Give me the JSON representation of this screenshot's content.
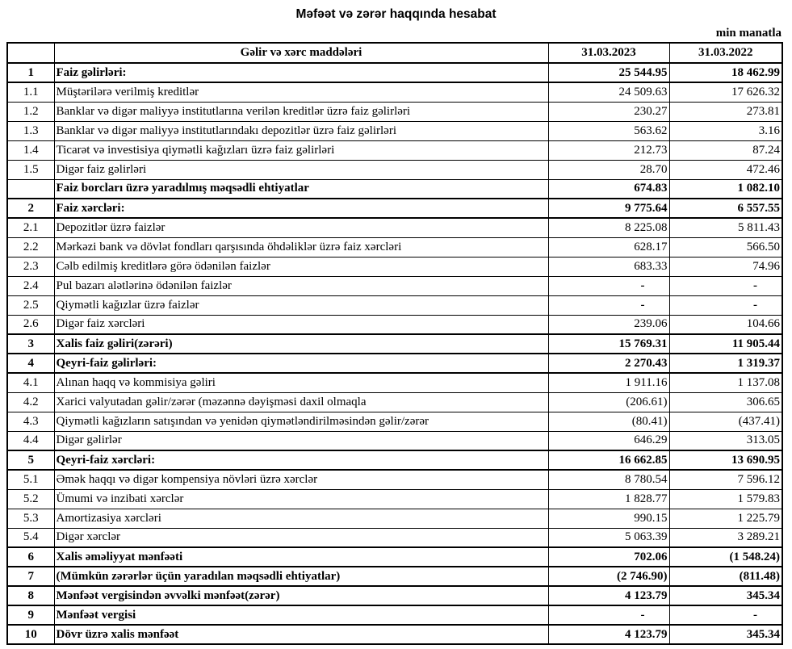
{
  "page": {
    "title": "Məfəət və zərər haqqında hesabat",
    "unit_note": "min manatla"
  },
  "table": {
    "columns": {
      "num": "",
      "item": "Gəlir və xərc maddələri",
      "y2023": "31.03.2023",
      "y2022": "31.03.2022"
    },
    "rows": [
      {
        "num": "1",
        "item": "Faiz gəlirləri:",
        "v2023": "25 544.95",
        "v2022": "18 462.99",
        "bold": true,
        "section": true
      },
      {
        "num": "1.1",
        "item": "Müştərilərə verilmiş kreditlər",
        "v2023": "24 509.63",
        "v2022": "17 626.32",
        "bold": false,
        "section": false
      },
      {
        "num": "1.2",
        "item": "Banklar və digər maliyyə institutlarına verilən kreditlər üzrə faiz gəlirləri",
        "v2023": "230.27",
        "v2022": "273.81",
        "bold": false,
        "section": false
      },
      {
        "num": "1.3",
        "item": "Banklar və digər maliyyə institutlarındakı depozitlər üzrə faiz gəlirləri",
        "v2023": "563.62",
        "v2022": "3.16",
        "bold": false,
        "section": false
      },
      {
        "num": "1.4",
        "item": "Ticarət və investisiya qiymətli kağızları üzrə faiz gəlirləri",
        "v2023": "212.73",
        "v2022": "87.24",
        "bold": false,
        "section": false
      },
      {
        "num": "1.5",
        "item": "Digər faiz gəlirləri",
        "v2023": "28.70",
        "v2022": "472.46",
        "bold": false,
        "section": false
      },
      {
        "num": "",
        "item": "Faiz borcları üzrə yaradılmış məqsədli ehtiyatlar",
        "v2023": "674.83",
        "v2022": "1 082.10",
        "bold": true,
        "section": false
      },
      {
        "num": "2",
        "item": "Faiz xərcləri:",
        "v2023": "9 775.64",
        "v2022": "6 557.55",
        "bold": true,
        "section": true
      },
      {
        "num": "2.1",
        "item": "Depozitlər üzrə faizlər",
        "v2023": "8 225.08",
        "v2022": "5 811.43",
        "bold": false,
        "section": false
      },
      {
        "num": "2.2",
        "item": "Mərkəzi bank və dövlət fondları qarşısında öhdəliklər üzrə faiz xərcləri",
        "v2023": "628.17",
        "v2022": "566.50",
        "bold": false,
        "section": false
      },
      {
        "num": "2.3",
        "item": "Cəlb edilmiş kreditlərə görə ödənilən faizlər",
        "v2023": "683.33",
        "v2022": "74.96",
        "bold": false,
        "section": false
      },
      {
        "num": "2.4",
        "item": "Pul bazarı alətlərinə ödənilən faizlər",
        "v2023": "-",
        "v2022": "-",
        "bold": false,
        "section": false
      },
      {
        "num": "2.5",
        "item": "Qiymətli kağızlar üzrə faizlər",
        "v2023": "-",
        "v2022": "-",
        "bold": false,
        "section": false
      },
      {
        "num": "2.6",
        "item": "Digər faiz xərcləri",
        "v2023": "239.06",
        "v2022": "104.66",
        "bold": false,
        "section": false
      },
      {
        "num": "3",
        "item": "Xalis faiz gəliri(zərəri)",
        "v2023": "15 769.31",
        "v2022": "11 905.44",
        "bold": true,
        "section": true
      },
      {
        "num": "4",
        "item": "Qeyri-faiz gəlirləri:",
        "v2023": "2 270.43",
        "v2022": "1 319.37",
        "bold": true,
        "section": true
      },
      {
        "num": "4.1",
        "item": "Alınan haqq və kommisiya gəliri",
        "v2023": "1 911.16",
        "v2022": "1 137.08",
        "bold": false,
        "section": false
      },
      {
        "num": "4.2",
        "item": "Xarici valyutadan gəlir/zərər (məzənnə dəyişməsi daxil olmaqla",
        "v2023": "(206.61)",
        "v2022": "306.65",
        "bold": false,
        "section": false
      },
      {
        "num": "4.3",
        "item": "Qiymətli kağızların satışından və yenidən qiymətləndirilməsindən gəlir/zərər",
        "v2023": "(80.41)",
        "v2022": "(437.41)",
        "bold": false,
        "section": false
      },
      {
        "num": "4.4",
        "item": "Digər gəlirlər",
        "v2023": "646.29",
        "v2022": "313.05",
        "bold": false,
        "section": false
      },
      {
        "num": "5",
        "item": "Qeyri-faiz xərcləri:",
        "v2023": "16 662.85",
        "v2022": "13 690.95",
        "bold": true,
        "section": true
      },
      {
        "num": "5.1",
        "item": "Əmək haqqı və digər kompensiya növləri üzrə xərclər",
        "v2023": "8 780.54",
        "v2022": "7 596.12",
        "bold": false,
        "section": false
      },
      {
        "num": "5.2",
        "item": "Ümumi və inzibati xərclər",
        "v2023": "1 828.77",
        "v2022": "1 579.83",
        "bold": false,
        "section": false
      },
      {
        "num": "5.3",
        "item": "Amortizasiya xərcləri",
        "v2023": "990.15",
        "v2022": "1 225.79",
        "bold": false,
        "section": false
      },
      {
        "num": "5.4",
        "item": "Digər xərclər",
        "v2023": "5 063.39",
        "v2022": "3 289.21",
        "bold": false,
        "section": false
      },
      {
        "num": "6",
        "item": "Xalis əməliyyat mənfəəti",
        "v2023": "702.06",
        "v2022": "(1 548.24)",
        "bold": true,
        "section": true
      },
      {
        "num": "7",
        "item": "(Mümkün zərərlər üçün yaradılan məqsədli ehtiyatlar)",
        "v2023": "(2 746.90)",
        "v2022": "(811.48)",
        "bold": true,
        "section": true
      },
      {
        "num": "8",
        "item": "Mənfəət vergisindən əvvəlki mənfəət(zərər)",
        "v2023": "4 123.79",
        "v2022": "345.34",
        "bold": true,
        "section": true
      },
      {
        "num": "9",
        "item": "Mənfəət vergisi",
        "v2023": "-",
        "v2022": "-",
        "bold": true,
        "section": true
      },
      {
        "num": "10",
        "item": "Dövr üzrə xalis mənfəət",
        "v2023": "4 123.79",
        "v2022": "345.34",
        "bold": true,
        "section": true
      }
    ]
  }
}
